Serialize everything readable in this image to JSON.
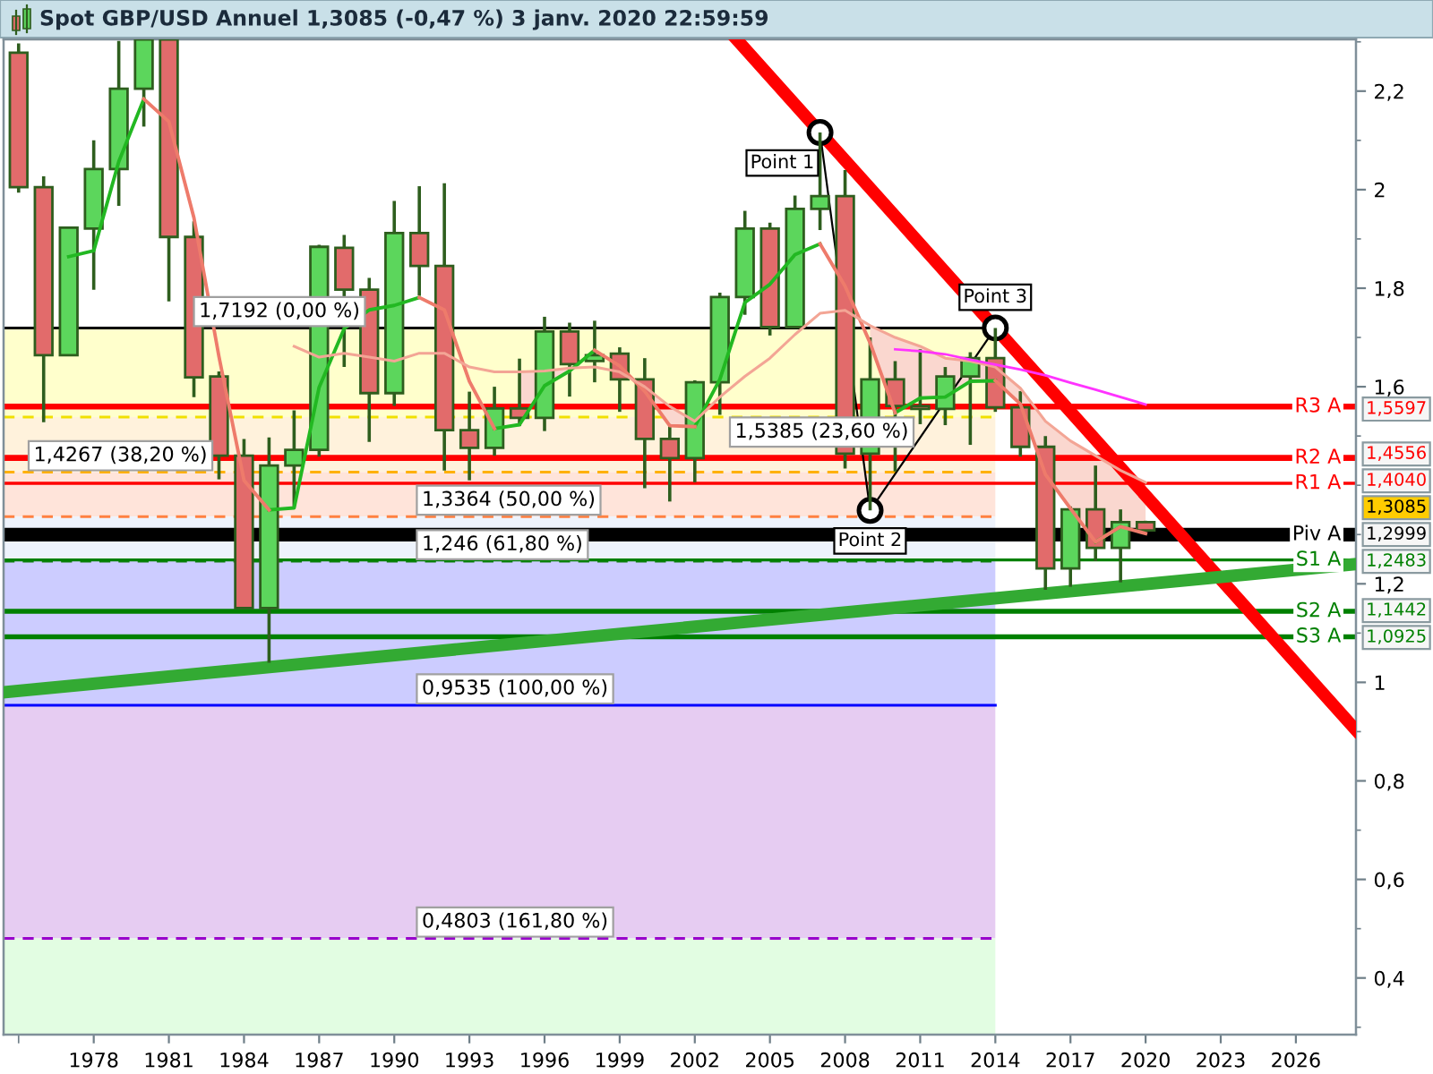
{
  "chart_data": {
    "type": "candlestick",
    "title": "Spot GBP/USD Annuel 1,3085 (-0,47 %) 3 janv. 2020 22:59:59",
    "x": [
      1975,
      1976,
      1977,
      1978,
      1979,
      1980,
      1981,
      1982,
      1983,
      1984,
      1985,
      1986,
      1987,
      1988,
      1989,
      1990,
      1991,
      1992,
      1993,
      1994,
      1995,
      1996,
      1997,
      1998,
      1999,
      2000,
      2001,
      2002,
      2003,
      2004,
      2005,
      2006,
      2007,
      2008,
      2009,
      2010,
      2011,
      2012,
      2013,
      2014,
      2015,
      2016,
      2017,
      2018,
      2019,
      2020
    ],
    "ohlc": [
      [
        2.278,
        2.297,
        1.994,
        2.005
      ],
      [
        2.005,
        2.027,
        1.528,
        1.664
      ],
      [
        1.664,
        1.925,
        1.664,
        1.923
      ],
      [
        1.921,
        2.1,
        1.797,
        2.042
      ],
      [
        2.042,
        2.302,
        1.967,
        2.205
      ],
      [
        2.205,
        2.305,
        2.128,
        2.305
      ],
      [
        2.305,
        2.305,
        1.773,
        1.904
      ],
      [
        1.904,
        1.936,
        1.579,
        1.619
      ],
      [
        1.621,
        1.631,
        1.412,
        1.46
      ],
      [
        1.46,
        1.494,
        1.151,
        1.151
      ],
      [
        1.151,
        1.497,
        1.04,
        1.44
      ],
      [
        1.44,
        1.552,
        1.357,
        1.472
      ],
      [
        1.472,
        1.888,
        1.458,
        1.884
      ],
      [
        1.882,
        1.908,
        1.64,
        1.797
      ],
      [
        1.797,
        1.821,
        1.488,
        1.587
      ],
      [
        1.587,
        1.977,
        1.561,
        1.912
      ],
      [
        1.912,
        2.007,
        1.785,
        1.845
      ],
      [
        1.845,
        2.013,
        1.43,
        1.512
      ],
      [
        1.512,
        1.59,
        1.41,
        1.476
      ],
      [
        1.476,
        1.6,
        1.46,
        1.556
      ],
      [
        1.556,
        1.657,
        1.52,
        1.537
      ],
      [
        1.537,
        1.742,
        1.51,
        1.712
      ],
      [
        1.712,
        1.73,
        1.58,
        1.646
      ],
      [
        1.652,
        1.734,
        1.609,
        1.664
      ],
      [
        1.667,
        1.68,
        1.549,
        1.615
      ],
      [
        1.615,
        1.658,
        1.394,
        1.494
      ],
      [
        1.494,
        1.524,
        1.367,
        1.455
      ],
      [
        1.455,
        1.613,
        1.406,
        1.609
      ],
      [
        1.609,
        1.791,
        1.543,
        1.782
      ],
      [
        1.782,
        1.957,
        1.746,
        1.921
      ],
      [
        1.921,
        1.933,
        1.704,
        1.721
      ],
      [
        1.721,
        1.988,
        1.721,
        1.961
      ],
      [
        1.961,
        2.116,
        1.918,
        1.987
      ],
      [
        1.987,
        2.04,
        1.434,
        1.464
      ],
      [
        1.464,
        1.7,
        1.349,
        1.615
      ],
      [
        1.615,
        1.652,
        1.428,
        1.561
      ],
      [
        1.561,
        1.676,
        1.524,
        1.555
      ],
      [
        1.555,
        1.64,
        1.522,
        1.621
      ],
      [
        1.621,
        1.67,
        1.482,
        1.658
      ],
      [
        1.658,
        1.7192,
        1.549,
        1.558
      ],
      [
        1.558,
        1.591,
        1.458,
        1.478
      ],
      [
        1.478,
        1.5,
        1.188,
        1.231
      ],
      [
        1.231,
        1.357,
        1.194,
        1.351
      ],
      [
        1.351,
        1.44,
        1.246,
        1.273
      ],
      [
        1.273,
        1.351,
        1.203,
        1.325
      ],
      [
        1.325,
        1.328,
        1.3085,
        1.3085
      ]
    ],
    "colors": [
      "#e26b6b",
      "#e26b6b",
      "#5cd65c",
      "#5cd65c",
      "#5cd65c",
      "#5cd65c",
      "#e26b6b",
      "#e26b6b",
      "#e26b6b",
      "#e26b6b",
      "#5cd65c",
      "#5cd65c",
      "#5cd65c",
      "#e26b6b",
      "#e26b6b",
      "#5cd65c",
      "#e26b6b",
      "#e26b6b",
      "#e26b6b",
      "#5cd65c",
      "#e26b6b",
      "#5cd65c",
      "#e26b6b",
      "#5cd65c",
      "#e26b6b",
      "#e26b6b",
      "#e26b6b",
      "#5cd65c",
      "#5cd65c",
      "#5cd65c",
      "#e26b6b",
      "#5cd65c",
      "#5cd65c",
      "#e26b6b",
      "#5cd65c",
      "#e26b6b",
      "#e26b6b",
      "#5cd65c",
      "#5cd65c",
      "#e26b6b",
      "#e26b6b",
      "#e26b6b",
      "#5cd65c",
      "#e26b6b",
      "#5cd65c",
      "#e26b6b"
    ],
    "xlim": [
      1974.4,
      2028.4
    ],
    "xticks": [
      {
        "value": 1975,
        "label": null
      },
      1978,
      1981,
      1984,
      1987,
      1990,
      1993,
      1996,
      1999,
      2002,
      2005,
      2008,
      2011,
      2014,
      2017,
      2020,
      2023,
      2026
    ],
    "ylim": [
      0.285,
      2.305
    ],
    "yticks": [
      {
        "value": 0.3,
        "label": null
      },
      {
        "value": 0.4,
        "label": "0,4"
      },
      {
        "value": 0.5,
        "label": null
      },
      {
        "value": 0.6,
        "label": "0,6"
      },
      {
        "value": 0.7,
        "label": null
      },
      {
        "value": 0.8,
        "label": "0,8"
      },
      {
        "value": 0.9,
        "label": null
      },
      1,
      {
        "value": 1.1,
        "label": null
      },
      {
        "value": 1.2,
        "label": "1,2"
      },
      {
        "value": 1.3,
        "label": null
      },
      {
        "value": 1.4,
        "label": null
      },
      {
        "value": 1.5,
        "label": null
      },
      {
        "value": 1.6,
        "label": "1,6"
      },
      {
        "value": 1.7,
        "label": null
      },
      {
        "value": 1.8,
        "label": "1,8"
      },
      {
        "value": 1.9,
        "label": null
      },
      2,
      {
        "value": 2.1,
        "label": null
      },
      {
        "value": 2.2,
        "label": "2,2"
      },
      {
        "value": 2.3,
        "label": null
      }
    ],
    "series": [
      {
        "type": "line",
        "color": "#22b822",
        "x": [
          1977,
          1978,
          1979,
          1980,
          1981,
          1982,
          1983,
          1984,
          1985,
          1986,
          1987,
          1988,
          1989,
          1990,
          1991,
          1992,
          1993,
          1994,
          1995,
          1996,
          1997,
          1998,
          1999,
          2000,
          2001,
          2002,
          2003,
          2004,
          2005,
          2006,
          2007,
          2008,
          2009,
          2010,
          2011,
          2012,
          2013,
          2014,
          2015,
          2016,
          2017,
          2018,
          2019
        ],
        "values": [
          1.864,
          1.876,
          2.057,
          2.184,
          null,
          null,
          null,
          null,
          1.35,
          1.354,
          1.599,
          1.718,
          1.756,
          1.765,
          1.781,
          null,
          null,
          1.515,
          1.523,
          1.602,
          1.632,
          1.674,
          null,
          null,
          null,
          1.519,
          1.615,
          1.771,
          1.808,
          1.868,
          1.89,
          null,
          null,
          1.547,
          1.577,
          1.579,
          1.611,
          1.612,
          null,
          null,
          null,
          1.285,
          1.316
        ]
      },
      {
        "type": "line",
        "color": "#ee7b6b",
        "x": [
          1980,
          1981,
          1982,
          1983,
          1984,
          1985,
          1986,
          1987,
          1988,
          1989,
          1990,
          1991,
          1992,
          1993,
          1994,
          1995,
          1996,
          1997,
          1998,
          1999,
          2000,
          2001,
          2002,
          2003,
          2004,
          2005,
          2006,
          2007,
          2008,
          2009,
          2010,
          2011,
          2012,
          2013,
          2014,
          2015,
          2016,
          2017,
          2018,
          2019,
          2020
        ],
        "values": [
          2.184,
          2.138,
          1.943,
          1.661,
          1.41,
          1.35,
          null,
          null,
          null,
          null,
          null,
          1.781,
          1.756,
          1.611,
          1.515,
          null,
          null,
          null,
          1.674,
          1.642,
          1.591,
          1.521,
          1.519,
          null,
          null,
          null,
          null,
          1.89,
          1.804,
          1.689,
          1.547,
          null,
          null,
          null,
          1.612,
          1.565,
          1.422,
          1.353,
          1.285,
          1.316,
          1.302
        ]
      },
      {
        "type": "line",
        "color": "#f3a595",
        "x": [
          1986,
          1987,
          1988,
          1989,
          1990,
          1991,
          1992,
          1993,
          1994,
          1995,
          1996,
          1997,
          1998,
          1999,
          2000,
          2001,
          2002,
          2003,
          2004,
          2005,
          2006,
          2007,
          2008,
          2009,
          2010,
          2011,
          2012,
          2013,
          2014,
          2015,
          2016,
          2017,
          2018,
          2019,
          2020
        ],
        "values": [
          1.682,
          1.66,
          1.668,
          1.66,
          1.652,
          1.668,
          1.668,
          1.64,
          1.63,
          1.63,
          1.632,
          1.638,
          1.64,
          1.63,
          1.6,
          1.56,
          1.53,
          1.579,
          1.621,
          1.658,
          1.706,
          1.749,
          1.755,
          1.724,
          1.7,
          1.682,
          1.658,
          1.652,
          1.64,
          1.597,
          1.53,
          1.49,
          1.46,
          1.43,
          1.406
        ],
        "lower": [
          null,
          null,
          null,
          null,
          null,
          null,
          null,
          null,
          null,
          1.523,
          1.602,
          1.632,
          null,
          null,
          1.591,
          1.521,
          1.519,
          null,
          null,
          null,
          null,
          null,
          null,
          1.689,
          1.547,
          1.577,
          1.579,
          1.611,
          1.612,
          1.565,
          1.422,
          1.353,
          1.285,
          1.316,
          1.302
        ],
        "upper": [
          null,
          null,
          null,
          null,
          null,
          null,
          null,
          null,
          null,
          1.63,
          1.632,
          1.638,
          null,
          null,
          1.6,
          1.56,
          1.53,
          null,
          null,
          null,
          null,
          null,
          null,
          1.724,
          1.7,
          1.682,
          1.658,
          1.652,
          1.64,
          1.597,
          1.53,
          1.49,
          1.46,
          1.43,
          1.406
        ]
      },
      {
        "type": "line",
        "color": "#ff33ff",
        "x": [
          2010,
          2011,
          2012,
          2013,
          2014,
          2015,
          2016,
          2017,
          2018,
          2019,
          2020
        ],
        "values": [
          1.676,
          1.672,
          1.666,
          1.655,
          1.645,
          1.635,
          1.623,
          1.608,
          1.594,
          1.579,
          1.564
        ]
      },
      {
        "type": "line",
        "name": "R3 A",
        "color": "#ff0000",
        "x": [
          1974.4,
          2028.4
        ],
        "values": [
          1.5597,
          1.5597
        ],
        "value_labels": [
          null,
          "1,5597"
        ]
      },
      {
        "type": "line",
        "name": "R2 A",
        "color": "#ff0000",
        "x": [
          1974.4,
          2028.4
        ],
        "values": [
          1.4556,
          1.4556
        ],
        "value_labels": [
          null,
          "1,4556"
        ]
      },
      {
        "type": "line",
        "name": "R1 A",
        "color": "#ff0000",
        "x": [
          1974.4,
          2028.4
        ],
        "values": [
          1.404,
          1.404
        ],
        "value_labels": [
          null,
          "1,4040"
        ]
      },
      {
        "type": "line",
        "name": "Piv A",
        "color": "#000000",
        "x": [
          1974.4,
          2028.4
        ],
        "values": [
          1.2999,
          1.2999
        ],
        "value_labels": [
          null,
          "1,2999"
        ]
      },
      {
        "type": "line",
        "name": "S1 A",
        "color": "#008000",
        "x": [
          1974.4,
          2028.4
        ],
        "values": [
          1.2483,
          1.2483
        ],
        "value_labels": [
          null,
          "1,2483"
        ]
      },
      {
        "type": "line",
        "name": "S2 A",
        "color": "#008000",
        "x": [
          1974.4,
          2028.4
        ],
        "values": [
          1.1442,
          1.1442
        ],
        "value_labels": [
          null,
          "1,1442"
        ]
      },
      {
        "type": "line",
        "name": "S3 A",
        "color": "#008000",
        "x": [
          1974.4,
          2028.4
        ],
        "values": [
          1.0925,
          1.0925
        ],
        "value_labels": [
          null,
          "1,0925"
        ]
      },
      {
        "type": "line",
        "color": "#ff0000",
        "x": [
          2003.67,
          2028.4
        ],
        "values": [
          2.305,
          0.903
        ]
      },
      {
        "type": "line",
        "color": "#33aa33",
        "x": [
          1974.4,
          2028.4
        ],
        "values": [
          0.98,
          1.24
        ]
      },
      {
        "type": "line",
        "color": "#000000",
        "marker": "circle",
        "x": [
          2007,
          2009,
          2014
        ],
        "values": [
          2.116,
          1.349,
          1.7192
        ]
      }
    ],
    "ref_lines": [
      {
        "axis": "y",
        "value": 1.7192,
        "color": "#000000",
        "line_style": "solid"
      },
      {
        "axis": "y",
        "value": 1.5385,
        "color": "#f0e000",
        "line_style": "dashed"
      },
      {
        "axis": "y",
        "value": 1.4267,
        "color": "#ffb000",
        "line_style": "dashed"
      },
      {
        "axis": "y",
        "value": 1.3364,
        "color": "#ff8040",
        "line_style": "dashed"
      },
      {
        "axis": "y",
        "value": 1.246,
        "color": "#108010",
        "line_style": "dashed"
      },
      {
        "axis": "y",
        "value": 0.9535,
        "color": "#0000ff",
        "line_style": "solid"
      },
      {
        "axis": "y",
        "value": 0.4803,
        "color": "#9900cc",
        "line_style": "dashed"
      }
    ],
    "bands": [
      {
        "axis": "y",
        "from": 1.5385,
        "to": 1.7192,
        "color": "#ffffcc"
      },
      {
        "axis": "y",
        "from": 1.4267,
        "to": 1.5385,
        "color": "#fff2dc"
      },
      {
        "axis": "y",
        "from": 1.3364,
        "to": 1.4267,
        "color": "#ffe4da"
      },
      {
        "axis": "y",
        "from": 1.246,
        "to": 1.3364,
        "color": "#eef3fc"
      },
      {
        "axis": "y",
        "from": 0.9535,
        "to": 1.246,
        "color": "#ccccff"
      },
      {
        "axis": "y",
        "from": 0.4803,
        "to": 0.9535,
        "color": "#e6ccf2"
      },
      {
        "axis": "y",
        "from": 0.285,
        "to": 0.4803,
        "color": "#e2fde2"
      }
    ],
    "annotations": [
      {
        "text": "Point 1",
        "x": 2007,
        "y": 2.116
      },
      {
        "text": "Point 2",
        "x": 2009,
        "y": 1.349
      },
      {
        "text": "Point 3",
        "x": 2014,
        "y": 1.7192
      },
      {
        "text": "1,7192 (0,00 %)",
        "x": 1982.2,
        "y": 1.7192
      },
      {
        "text": "1,5385 (23,60 %)",
        "x": 2003.6,
        "y": 1.5385
      },
      {
        "text": "1,4267 (38,20 %)",
        "x": 1975.6,
        "y": 1.4267
      },
      {
        "text": "1,3364 (50,00 %)",
        "x": 1991.1,
        "y": 1.3364
      },
      {
        "text": "1,246 (61,80 %)",
        "x": 1991.1,
        "y": 1.246
      },
      {
        "text": "0,9535 (100,00 %)",
        "x": 1991.1,
        "y": 0.9535
      },
      {
        "text": "0,4803 (161,80 %)",
        "x": 1991.1,
        "y": 0.4803
      },
      "1,3085"
    ]
  }
}
